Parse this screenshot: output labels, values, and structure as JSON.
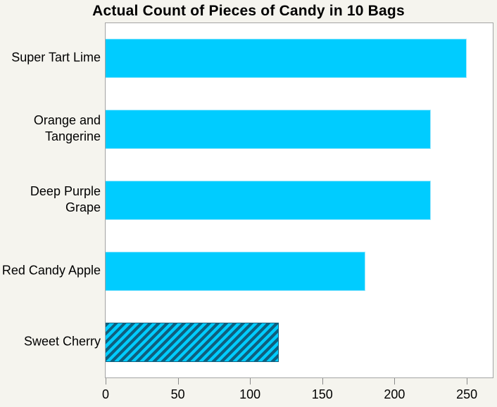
{
  "chart_data": {
    "type": "bar",
    "orientation": "horizontal",
    "title": "Actual Count of Pieces of Candy in 10 Bags",
    "categories": [
      "Super Tart Lime",
      "Orange and Tangerine",
      "Deep Purple Grape",
      "Red Candy Apple",
      "Sweet Cherry"
    ],
    "wrapped_labels": [
      "Super Tart Lime",
      "Orange and\nTangerine",
      "Deep Purple\nGrape",
      "Red Candy Apple",
      "Sweet Cherry"
    ],
    "values": [
      250,
      225,
      225,
      180,
      120
    ],
    "xlabel": "",
    "ylabel": "",
    "xlim": [
      0,
      268
    ],
    "xticks": [
      0,
      50,
      100,
      150,
      200,
      250
    ],
    "grid": "off",
    "legend": "none",
    "bar_color": "#00ccff",
    "hatched_category": "Sweet Cherry",
    "hatch_style": "diagonal-stripes",
    "hatch_color": "#0f5f7e",
    "background_color": "#f5f4ee",
    "plot_background_color": "#ffffff",
    "plot_border_color": "#a3a3a3"
  }
}
